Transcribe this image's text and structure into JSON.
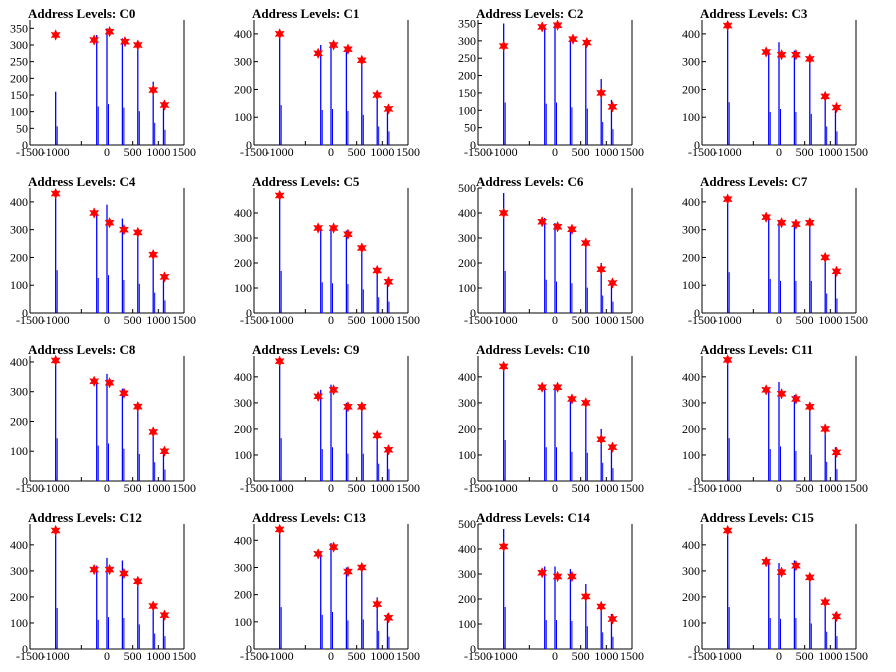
{
  "colors": {
    "line": "#0000ff",
    "marker": "#ff0000",
    "axis": "#000000"
  },
  "chart_data": [
    {
      "type": "line",
      "title": "Address Levels: C0",
      "xlim": [
        -1500,
        1500
      ],
      "ylim": [
        0,
        375
      ],
      "xticks": [
        -1500,
        -1000,
        -500,
        0,
        500,
        1000,
        1500
      ],
      "xtick_labels": [
        "-1500",
        "-1000",
        "",
        "0",
        "500",
        "1000",
        "1500"
      ],
      "yticks": [
        0,
        50,
        100,
        150,
        200,
        250,
        300,
        350
      ],
      "series": [
        {
          "name": "",
          "x": [
            -1000,
            -200,
            0,
            300,
            600,
            900,
            1100
          ],
          "y": [
            160,
            330,
            350,
            320,
            290,
            190,
            130
          ]
        }
      ],
      "peaks": {
        "x": [
          -1000,
          -250,
          50,
          350,
          600,
          900,
          1120
        ],
        "y": [
          330,
          315,
          340,
          310,
          300,
          165,
          120
        ]
      }
    },
    {
      "type": "line",
      "title": "Address Levels: C1",
      "xlim": [
        -1500,
        1500
      ],
      "ylim": [
        0,
        450
      ],
      "xticks": [
        -1500,
        -1000,
        -500,
        0,
        500,
        1000,
        1500
      ],
      "xtick_labels": [
        "-1500",
        "-1000",
        "",
        "0",
        "500",
        "1000",
        "1500"
      ],
      "yticks": [
        0,
        100,
        200,
        300,
        400
      ],
      "series": [
        {
          "name": "",
          "x": [
            -1000,
            -200,
            0,
            300,
            600,
            900,
            1100
          ],
          "y": [
            410,
            360,
            370,
            350,
            310,
            190,
            140
          ]
        }
      ],
      "peaks": {
        "x": [
          -1000,
          -250,
          50,
          330,
          600,
          900,
          1120
        ],
        "y": [
          400,
          330,
          360,
          345,
          305,
          180,
          130
        ]
      }
    },
    {
      "type": "line",
      "title": "Address Levels: C2",
      "xlim": [
        -1500,
        1500
      ],
      "ylim": [
        0,
        360
      ],
      "xticks": [
        -1500,
        -1000,
        -500,
        0,
        500,
        1000,
        1500
      ],
      "xtick_labels": [
        "-1500",
        "-1000",
        "",
        "0",
        "500",
        "1000",
        "1500"
      ],
      "yticks": [
        0,
        50,
        100,
        150,
        200,
        250,
        300,
        350
      ],
      "series": [
        {
          "name": "",
          "x": [
            -1000,
            -200,
            0,
            300,
            600,
            900,
            1100
          ],
          "y": [
            350,
            340,
            350,
            310,
            300,
            190,
            130
          ]
        }
      ],
      "peaks": {
        "x": [
          -1000,
          -250,
          50,
          350,
          620,
          900,
          1120
        ],
        "y": [
          285,
          340,
          345,
          305,
          295,
          150,
          110
        ]
      }
    },
    {
      "type": "line",
      "title": "Address Levels: C3",
      "xlim": [
        -1500,
        1500
      ],
      "ylim": [
        0,
        450
      ],
      "xticks": [
        -1500,
        -1000,
        -500,
        0,
        500,
        1000,
        1500
      ],
      "xtick_labels": [
        "-1500",
        "-1000",
        "",
        "0",
        "500",
        "1000",
        "1500"
      ],
      "yticks": [
        0,
        100,
        200,
        300,
        400
      ],
      "series": [
        {
          "name": "",
          "x": [
            -1000,
            -200,
            0,
            300,
            600,
            900,
            1100
          ],
          "y": [
            440,
            340,
            370,
            340,
            320,
            190,
            140
          ]
        }
      ],
      "peaks": {
        "x": [
          -1000,
          -250,
          50,
          330,
          600,
          900,
          1120
        ],
        "y": [
          430,
          335,
          325,
          325,
          310,
          175,
          135
        ]
      }
    },
    {
      "type": "line",
      "title": "Address Levels: C4",
      "xlim": [
        -1500,
        1500
      ],
      "ylim": [
        0,
        450
      ],
      "xticks": [
        -1500,
        -1000,
        -500,
        0,
        500,
        1000,
        1500
      ],
      "xtick_labels": [
        "-1500",
        "-1000",
        "",
        "0",
        "500",
        "1000",
        "1500"
      ],
      "yticks": [
        0,
        100,
        200,
        300,
        400
      ],
      "series": [
        {
          "name": "",
          "x": [
            -1000,
            -200,
            0,
            300,
            600,
            900,
            1100
          ],
          "y": [
            440,
            360,
            390,
            340,
            300,
            210,
            130
          ]
        }
      ],
      "peaks": {
        "x": [
          -1000,
          -250,
          50,
          330,
          600,
          900,
          1120
        ],
        "y": [
          430,
          360,
          325,
          300,
          290,
          210,
          130
        ]
      }
    },
    {
      "type": "line",
      "title": "Address Levels: C5",
      "xlim": [
        -1500,
        1500
      ],
      "ylim": [
        0,
        500
      ],
      "xticks": [
        -1500,
        -1000,
        -500,
        0,
        500,
        1000,
        1500
      ],
      "xtick_labels": [
        "-1500",
        "-1000",
        "",
        "0",
        "500",
        "1000",
        "1500"
      ],
      "yticks": [
        0,
        100,
        200,
        300,
        400
      ],
      "series": [
        {
          "name": "",
          "x": [
            -1000,
            -200,
            0,
            300,
            600,
            900,
            1100
          ],
          "y": [
            480,
            350,
            340,
            330,
            270,
            180,
            130
          ]
        }
      ],
      "peaks": {
        "x": [
          -1000,
          -250,
          50,
          330,
          600,
          900,
          1120
        ],
        "y": [
          470,
          340,
          340,
          315,
          260,
          170,
          125
        ]
      }
    },
    {
      "type": "line",
      "title": "Address Levels: C6",
      "xlim": [
        -1500,
        1500
      ],
      "ylim": [
        0,
        500
      ],
      "xticks": [
        -1500,
        -1000,
        -500,
        0,
        500,
        1000,
        1500
      ],
      "xtick_labels": [
        "-1500",
        "-1000",
        "",
        "0",
        "500",
        "1000",
        "1500"
      ],
      "yticks": [
        0,
        100,
        200,
        300,
        400,
        500
      ],
      "series": [
        {
          "name": "",
          "x": [
            -1000,
            -200,
            0,
            300,
            600,
            900,
            1100
          ],
          "y": [
            480,
            380,
            360,
            340,
            290,
            200,
            130
          ]
        }
      ],
      "peaks": {
        "x": [
          -1000,
          -250,
          50,
          330,
          600,
          900,
          1120
        ],
        "y": [
          400,
          365,
          345,
          335,
          280,
          175,
          120
        ]
      }
    },
    {
      "type": "line",
      "title": "Address Levels: C7",
      "xlim": [
        -1500,
        1500
      ],
      "ylim": [
        0,
        450
      ],
      "xticks": [
        -1500,
        -1000,
        -500,
        0,
        500,
        1000,
        1500
      ],
      "xtick_labels": [
        "-1500",
        "-1000",
        "",
        "0",
        "500",
        "1000",
        "1500"
      ],
      "yticks": [
        0,
        100,
        200,
        300,
        400
      ],
      "series": [
        {
          "name": "",
          "x": [
            -1000,
            -200,
            0,
            300,
            600,
            900,
            1100
          ],
          "y": [
            420,
            350,
            330,
            330,
            330,
            200,
            150
          ]
        }
      ],
      "peaks": {
        "x": [
          -1000,
          -250,
          50,
          330,
          600,
          900,
          1120
        ],
        "y": [
          410,
          345,
          325,
          320,
          325,
          200,
          150
        ]
      }
    },
    {
      "type": "line",
      "title": "Address Levels: C8",
      "xlim": [
        -1500,
        1500
      ],
      "ylim": [
        0,
        420
      ],
      "xticks": [
        -1500,
        -1000,
        -500,
        0,
        500,
        1000,
        1500
      ],
      "xtick_labels": [
        "-1500",
        "-1000",
        "",
        "0",
        "500",
        "1000",
        "1500"
      ],
      "yticks": [
        0,
        100,
        200,
        300,
        400
      ],
      "series": [
        {
          "name": "",
          "x": [
            -1000,
            -200,
            0,
            300,
            600,
            900,
            1100
          ],
          "y": [
            410,
            340,
            360,
            310,
            260,
            180,
            110
          ]
        }
      ],
      "peaks": {
        "x": [
          -1000,
          -250,
          50,
          330,
          600,
          900,
          1120
        ],
        "y": [
          405,
          335,
          330,
          295,
          250,
          165,
          100
        ]
      }
    },
    {
      "type": "line",
      "title": "Address Levels: C9",
      "xlim": [
        -1500,
        1500
      ],
      "ylim": [
        0,
        480
      ],
      "xticks": [
        -1500,
        -1000,
        -500,
        0,
        500,
        1000,
        1500
      ],
      "xtick_labels": [
        "-1500",
        "-1000",
        "",
        "0",
        "500",
        "1000",
        "1500"
      ],
      "yticks": [
        0,
        100,
        200,
        300,
        400
      ],
      "series": [
        {
          "name": "",
          "x": [
            -1000,
            -200,
            0,
            300,
            600,
            900,
            1100
          ],
          "y": [
            470,
            350,
            370,
            300,
            300,
            190,
            130
          ]
        }
      ],
      "peaks": {
        "x": [
          -1000,
          -250,
          50,
          330,
          600,
          900,
          1120
        ],
        "y": [
          460,
          325,
          350,
          285,
          285,
          175,
          120
        ]
      }
    },
    {
      "type": "line",
      "title": "Address Levels: C10",
      "xlim": [
        -1500,
        1500
      ],
      "ylim": [
        0,
        480
      ],
      "xticks": [
        -1500,
        -1000,
        -500,
        0,
        500,
        1000,
        1500
      ],
      "xtick_labels": [
        "-1500",
        "-1000",
        "",
        "0",
        "500",
        "1000",
        "1500"
      ],
      "yticks": [
        0,
        100,
        200,
        300,
        400
      ],
      "series": [
        {
          "name": "",
          "x": [
            -1000,
            -200,
            0,
            300,
            600,
            900,
            1100
          ],
          "y": [
            450,
            370,
            370,
            320,
            310,
            200,
            140
          ]
        }
      ],
      "peaks": {
        "x": [
          -1000,
          -250,
          50,
          330,
          600,
          900,
          1120
        ],
        "y": [
          440,
          360,
          360,
          315,
          300,
          160,
          130
        ]
      }
    },
    {
      "type": "line",
      "title": "Address Levels: C11",
      "xlim": [
        -1500,
        1500
      ],
      "ylim": [
        0,
        480
      ],
      "xticks": [
        -1500,
        -1000,
        -500,
        0,
        500,
        1000,
        1500
      ],
      "xtick_labels": [
        "-1500",
        "-1000",
        "",
        "0",
        "500",
        "1000",
        "1500"
      ],
      "yticks": [
        0,
        100,
        200,
        300,
        400
      ],
      "series": [
        {
          "name": "",
          "x": [
            -1000,
            -200,
            0,
            300,
            600,
            900,
            1100
          ],
          "y": [
            470,
            350,
            380,
            330,
            290,
            210,
            130
          ]
        }
      ],
      "peaks": {
        "x": [
          -1000,
          -250,
          50,
          330,
          600,
          900,
          1120
        ],
        "y": [
          465,
          350,
          335,
          315,
          285,
          200,
          110
        ]
      }
    },
    {
      "type": "line",
      "title": "Address Levels: C12",
      "xlim": [
        -1500,
        1500
      ],
      "ylim": [
        0,
        480
      ],
      "xticks": [
        -1500,
        -1000,
        -500,
        0,
        500,
        1000,
        1500
      ],
      "xtick_labels": [
        "-1500",
        "-1000",
        "",
        "0",
        "500",
        "1000",
        "1500"
      ],
      "yticks": [
        0,
        100,
        200,
        300,
        400
      ],
      "series": [
        {
          "name": "",
          "x": [
            -1000,
            -200,
            0,
            300,
            600,
            900,
            1100
          ],
          "y": [
            450,
            320,
            350,
            340,
            270,
            170,
            140
          ]
        }
      ],
      "peaks": {
        "x": [
          -1000,
          -250,
          50,
          330,
          600,
          900,
          1120
        ],
        "y": [
          455,
          305,
          305,
          290,
          260,
          165,
          130
        ]
      }
    },
    {
      "type": "line",
      "title": "Address Levels: C13",
      "xlim": [
        -1500,
        1500
      ],
      "ylim": [
        0,
        460
      ],
      "xticks": [
        -1500,
        -1000,
        -500,
        0,
        500,
        1000,
        1500
      ],
      "xtick_labels": [
        "-1500",
        "-1000",
        "",
        "0",
        "500",
        "1000",
        "1500"
      ],
      "yticks": [
        0,
        100,
        200,
        300,
        400
      ],
      "series": [
        {
          "name": "",
          "x": [
            -1000,
            -200,
            0,
            300,
            600,
            900,
            1100
          ],
          "y": [
            440,
            360,
            390,
            300,
            310,
            190,
            130
          ]
        }
      ],
      "peaks": {
        "x": [
          -1000,
          -250,
          50,
          330,
          600,
          900,
          1120
        ],
        "y": [
          440,
          350,
          375,
          285,
          300,
          165,
          115
        ]
      }
    },
    {
      "type": "line",
      "title": "Address Levels: C14",
      "xlim": [
        -1500,
        1500
      ],
      "ylim": [
        0,
        500
      ],
      "xticks": [
        -1500,
        -1000,
        -500,
        0,
        500,
        1000,
        1500
      ],
      "xtick_labels": [
        "-1500",
        "-1000",
        "",
        "0",
        "500",
        "1000",
        "1500"
      ],
      "yticks": [
        0,
        100,
        200,
        300,
        400,
        500
      ],
      "series": [
        {
          "name": "",
          "x": [
            -1000,
            -200,
            0,
            300,
            600,
            900,
            1100
          ],
          "y": [
            480,
            330,
            330,
            320,
            260,
            190,
            140
          ]
        }
      ],
      "peaks": {
        "x": [
          -1000,
          -250,
          50,
          330,
          600,
          900,
          1120
        ],
        "y": [
          410,
          305,
          290,
          290,
          210,
          170,
          120
        ]
      }
    },
    {
      "type": "line",
      "title": "Address Levels: C15",
      "xlim": [
        -1500,
        1500
      ],
      "ylim": [
        0,
        480
      ],
      "xticks": [
        -1500,
        -1000,
        -500,
        0,
        500,
        1000,
        1500
      ],
      "xtick_labels": [
        "-1500",
        "-1000",
        "",
        "0",
        "500",
        "1000",
        "1500"
      ],
      "yticks": [
        0,
        100,
        200,
        300,
        400
      ],
      "series": [
        {
          "name": "",
          "x": [
            -1000,
            -200,
            0,
            300,
            600,
            900,
            1100
          ],
          "y": [
            460,
            340,
            330,
            340,
            280,
            190,
            140
          ]
        }
      ],
      "peaks": {
        "x": [
          -1000,
          -250,
          50,
          330,
          600,
          900,
          1120
        ],
        "y": [
          455,
          335,
          295,
          320,
          275,
          180,
          125
        ]
      }
    }
  ]
}
